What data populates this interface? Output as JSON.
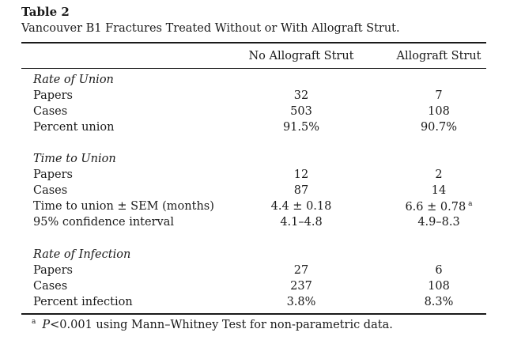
{
  "table": {
    "label": "Table 2",
    "caption": "Vancouver B1 Fractures Treated Without or With Allograft Strut.",
    "columns": [
      "No Allograft Strut",
      "Allograft Strut"
    ],
    "sections": [
      {
        "title": "Rate of Union",
        "rows": [
          {
            "label": "Papers",
            "values": [
              "32",
              "7"
            ],
            "note": ""
          },
          {
            "label": "Cases",
            "values": [
              "503",
              "108"
            ],
            "note": ""
          },
          {
            "label": "Percent union",
            "values": [
              "91.5%",
              "90.7%"
            ],
            "note": ""
          }
        ]
      },
      {
        "title": "Time to Union",
        "rows": [
          {
            "label": "Papers",
            "values": [
              "12",
              "2"
            ],
            "note": ""
          },
          {
            "label": "Cases",
            "values": [
              "87",
              "14"
            ],
            "note": ""
          },
          {
            "label": "Time to union ± SEM (months)",
            "values": [
              "4.4 ± 0.18",
              "6.6 ± 0.78"
            ],
            "note": "a"
          },
          {
            "label": "95% confidence interval",
            "values": [
              "4.1–4.8",
              "4.9–8.3"
            ],
            "note": ""
          }
        ]
      },
      {
        "title": "Rate of Infection",
        "rows": [
          {
            "label": "Papers",
            "values": [
              "27",
              "6"
            ],
            "note": ""
          },
          {
            "label": "Cases",
            "values": [
              "237",
              "108"
            ],
            "note": ""
          },
          {
            "label": "Percent infection",
            "values": [
              "3.8%",
              "8.3%"
            ],
            "note": ""
          }
        ]
      }
    ],
    "footnote": {
      "mark": "a",
      "p_symbol": "P",
      "text": "<0.001 using Mann–Whitney Test for non-parametric data."
    }
  }
}
